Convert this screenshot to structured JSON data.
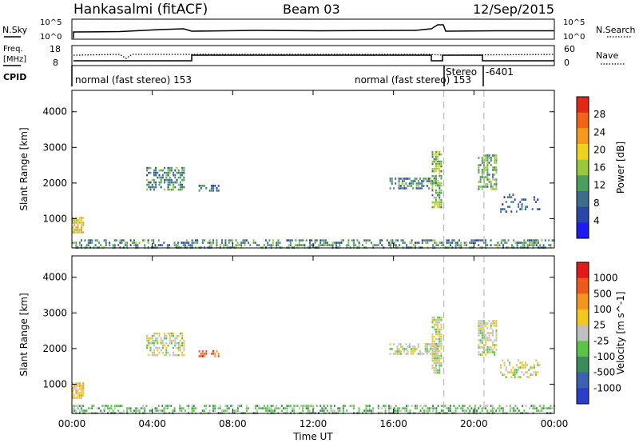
{
  "header": {
    "station": "Hankasalmi (fitACF)",
    "beam": "Beam 03",
    "date": "12/Sep/2015"
  },
  "noise_panel": {
    "left_label": "N.Sky",
    "right_label": "N.Search",
    "left_ticks": [
      "10^5",
      "10^0"
    ],
    "right_ticks": [
      "10^5",
      "10^0"
    ]
  },
  "freq_panel": {
    "left_label_line1": "Freq.",
    "left_label_line2": "[MHz]",
    "right_label": "Nave",
    "left_ticks": [
      "18",
      "8"
    ],
    "right_ticks": [
      "60",
      "0"
    ]
  },
  "cpid": {
    "label": "CPID",
    "segments": [
      {
        "text": "normal (fast stereo) 153",
        "start_hour": 0
      },
      {
        "text": "normal (fast stereo) 153",
        "start_hour": 15.6
      },
      {
        "text": "Stereo",
        "start_hour": 18.5
      },
      {
        "text": "-6401",
        "start_hour": 20.5
      }
    ]
  },
  "colors": {
    "power_scale": [
      "#1c1cf0",
      "#2a46a6",
      "#3c6e8c",
      "#4aa05a",
      "#9ac83c",
      "#f0d21e",
      "#f59a1e",
      "#ef6418",
      "#e42818"
    ],
    "velocity_scale": [
      "#2c3ec8",
      "#3a62b0",
      "#3c8c5a",
      "#5ac446",
      "#c0c0c0",
      "#f2c81e",
      "#f2961e",
      "#ee5a1e",
      "#e41818"
    ]
  },
  "chart_data": [
    {
      "type": "heatmap",
      "name": "power",
      "title": "",
      "xlabel": "",
      "ylabel": "Slant Range [km]",
      "xlim_hours": [
        0,
        24
      ],
      "ylim": [
        180,
        4600
      ],
      "x_tick_labels": [
        "00:00",
        "04:00",
        "08:00",
        "12:00",
        "16:00",
        "20:00",
        "00:00"
      ],
      "y_ticks": [
        1000,
        2000,
        3000,
        4000
      ],
      "colorbar_label": "Power [dB]",
      "colorbar_ticks": [
        "4",
        "8",
        "12",
        "16",
        "20",
        "24",
        "28"
      ],
      "colorbar_range": [
        0,
        32
      ],
      "echo_regions": [
        {
          "x": [
            0.0,
            24.0
          ],
          "y": [
            200,
            420
          ],
          "value": 9,
          "density": 0.45
        },
        {
          "x": [
            0.0,
            0.6
          ],
          "y": [
            600,
            1050
          ],
          "value": 18,
          "density": 0.8
        },
        {
          "x": [
            3.7,
            5.6
          ],
          "y": [
            1800,
            2450
          ],
          "value": 9,
          "density": 0.55
        },
        {
          "x": [
            6.3,
            7.3
          ],
          "y": [
            1750,
            1950
          ],
          "value": 6,
          "density": 0.5
        },
        {
          "x": [
            15.8,
            18.2
          ],
          "y": [
            1850,
            2150
          ],
          "value": 8,
          "density": 0.6
        },
        {
          "x": [
            17.9,
            18.4
          ],
          "y": [
            1350,
            2900
          ],
          "value": 12,
          "density": 0.7
        },
        {
          "x": [
            20.2,
            21.1
          ],
          "y": [
            1800,
            2800
          ],
          "value": 11,
          "density": 0.65
        },
        {
          "x": [
            21.3,
            23.3
          ],
          "y": [
            1200,
            1700
          ],
          "value": 6,
          "density": 0.25
        }
      ]
    },
    {
      "type": "heatmap",
      "name": "velocity",
      "title": "",
      "xlabel": "Time UT",
      "ylabel": "Slant Range [km]",
      "xlim_hours": [
        0,
        24
      ],
      "ylim": [
        180,
        4600
      ],
      "x_tick_labels": [
        "00:00",
        "04:00",
        "08:00",
        "12:00",
        "16:00",
        "20:00",
        "00:00"
      ],
      "y_ticks": [
        1000,
        2000,
        3000,
        4000
      ],
      "colorbar_label": "Velocity [m s^-1]",
      "colorbar_ticks": [
        "1000",
        "500",
        "100",
        "25",
        "-25",
        "-100",
        "-500",
        "-1000"
      ],
      "echo_regions": [
        {
          "x": [
            0.0,
            24.0
          ],
          "y": [
            200,
            420
          ],
          "value": 3,
          "density": 0.45
        },
        {
          "x": [
            0.0,
            0.6
          ],
          "y": [
            600,
            1050
          ],
          "value": 5,
          "density": 0.8
        },
        {
          "x": [
            3.7,
            5.6
          ],
          "y": [
            1800,
            2450
          ],
          "value": 4,
          "density": 0.55
        },
        {
          "x": [
            6.3,
            7.3
          ],
          "y": [
            1750,
            1950
          ],
          "value": 7,
          "density": 0.5
        },
        {
          "x": [
            15.8,
            18.2
          ],
          "y": [
            1850,
            2150
          ],
          "value": 4,
          "density": 0.6
        },
        {
          "x": [
            17.9,
            18.4
          ],
          "y": [
            1350,
            2900
          ],
          "value": 4,
          "density": 0.7
        },
        {
          "x": [
            20.2,
            21.1
          ],
          "y": [
            1800,
            2800
          ],
          "value": 4,
          "density": 0.65
        },
        {
          "x": [
            21.3,
            23.3
          ],
          "y": [
            1200,
            1700
          ],
          "value": 4,
          "density": 0.25
        }
      ]
    }
  ]
}
